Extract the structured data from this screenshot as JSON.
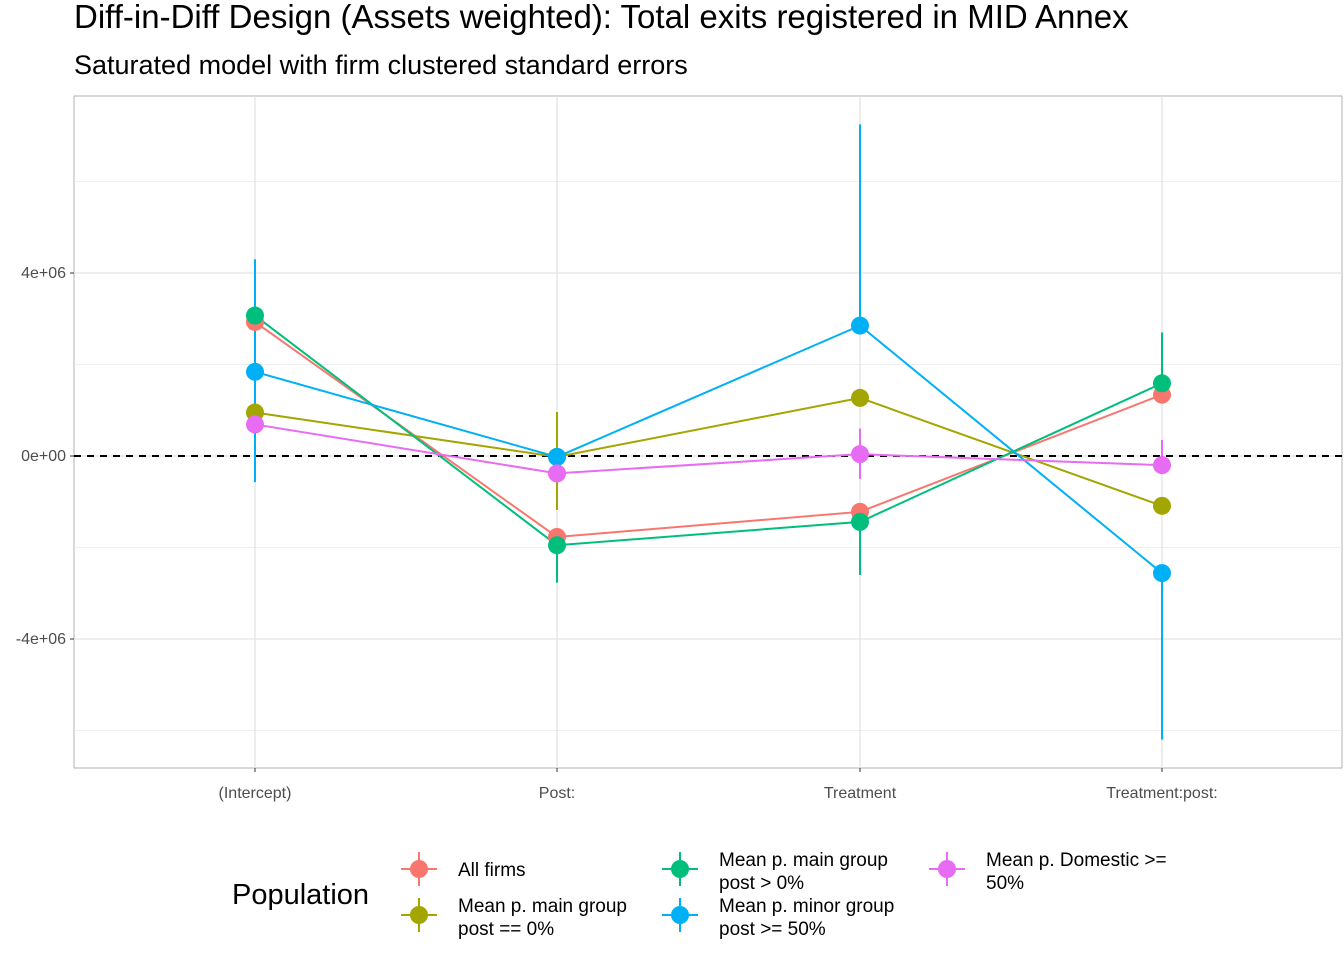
{
  "chart_data": {
    "type": "line",
    "title": "Diff-in-Diff Design (Assets weighted): Total exits registered in MID Annex",
    "subtitle": "Saturated model with firm clustered standard errors",
    "xlabel": "",
    "ylabel": "",
    "categories": [
      "(Intercept)",
      "Post:",
      "Treatment",
      "Treatment:post:"
    ],
    "y_ticks": [
      -4000000,
      0,
      4000000
    ],
    "y_tick_labels": [
      "-4e+06",
      "0e+00",
      "4e+06"
    ],
    "ylim": [
      -6800000,
      7800000
    ],
    "grid": true,
    "reference_line": 0,
    "legend": {
      "title": "Population",
      "placement": "bottom"
    },
    "series": [
      {
        "name": "All firms",
        "color": "#F8766D",
        "values": [
          2930000,
          -1770000,
          -1220000,
          1340000
        ],
        "lower": [
          null,
          null,
          null,
          null
        ],
        "upper": [
          null,
          null,
          null,
          null
        ]
      },
      {
        "name": "Mean p. main group post == 0%",
        "color": "#A3A500",
        "values": [
          950000,
          -20000,
          1270000,
          -1090000
        ],
        "lower": [
          null,
          -1180000,
          null,
          null
        ],
        "upper": [
          null,
          960000,
          null,
          null
        ]
      },
      {
        "name": "Mean p. main group post > 0%",
        "color": "#00BF7D",
        "values": [
          3070000,
          -1950000,
          -1440000,
          1590000
        ],
        "lower": [
          null,
          -2770000,
          -2600000,
          null
        ],
        "upper": [
          null,
          null,
          null,
          2700000
        ]
      },
      {
        "name": "Mean p. minor group post >= 50%",
        "color": "#00B0F6",
        "values": [
          1840000,
          -20000,
          2850000,
          -2560000
        ],
        "lower": [
          -570000,
          null,
          null,
          -6200000
        ],
        "upper": [
          4300000,
          null,
          7250000,
          null
        ]
      },
      {
        "name": "Mean p. Domestic >= 50%",
        "color": "#E76BF3",
        "values": [
          690000,
          -380000,
          40000,
          -200000
        ],
        "lower": [
          null,
          null,
          -500000,
          null
        ],
        "upper": [
          null,
          null,
          600000,
          350000
        ]
      }
    ]
  },
  "legend_items": [
    {
      "line1": "All firms",
      "line2": ""
    },
    {
      "line1": "Mean p. main group",
      "line2": "post == 0%"
    },
    {
      "line1": "Mean p. main group",
      "line2": "post > 0%"
    },
    {
      "line1": "Mean p. minor group",
      "line2": "post >= 50%"
    },
    {
      "line1": "Mean p. Domestic >=",
      "line2": "50%"
    }
  ]
}
